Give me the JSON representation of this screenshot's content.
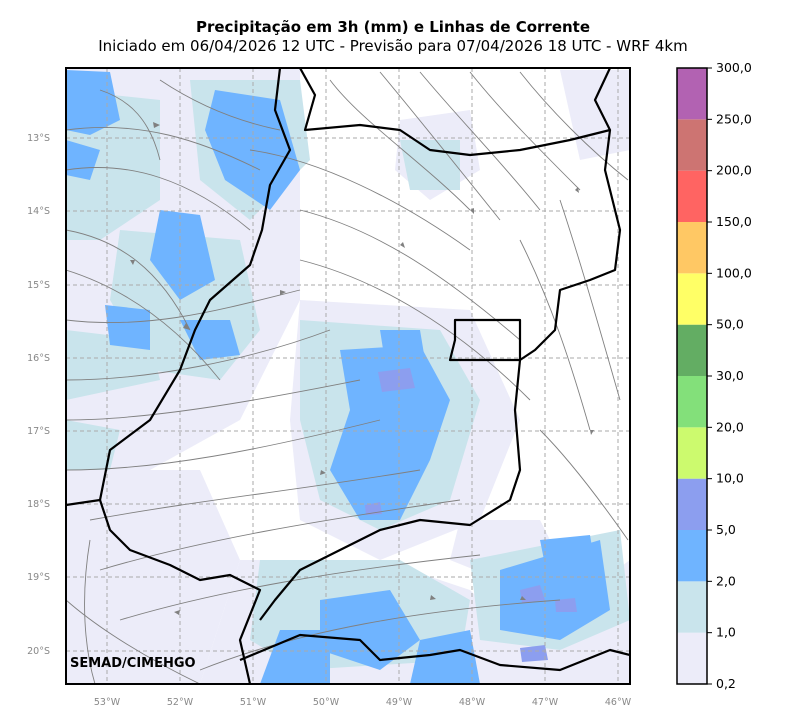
{
  "title": "Precipitação em 3h (mm) e Linhas de Corrente",
  "subtitle": "Iniciado em 06/04/2026 12 UTC - Previsão para 07/04/2026 18 UTC - WRF 4km",
  "credit": "SEMAD/CIMEHGO",
  "map": {
    "lat_labels": [
      "13°S",
      "14°S",
      "15°S",
      "16°S",
      "17°S",
      "18°S",
      "19°S",
      "20°S"
    ],
    "lon_labels": [
      "53°W",
      "52°W",
      "51°W",
      "50°W",
      "49°W",
      "48°W",
      "47°W",
      "46°W"
    ],
    "gridlines": true,
    "grid_style": "dashed"
  },
  "colorbar": {
    "levels": [
      "0,2",
      "1,0",
      "2,0",
      "5,0",
      "10,0",
      "20,0",
      "30,0",
      "50,0",
      "100,0",
      "150,0",
      "200,0",
      "250,0",
      "300,0"
    ],
    "colors": [
      "#ececf9",
      "#c9e4ec",
      "#6fb4ff",
      "#8c9eef",
      "#ccfa6e",
      "#83e07a",
      "#63ad63",
      "#ffff66",
      "#ffc864",
      "#ff6462",
      "#cd7472",
      "#b262b2"
    ]
  },
  "colors": {
    "rain_light": "#ececf9",
    "rain_pale": "#c9e4ec",
    "rain_blue": "#6fb4ff",
    "rain_violet": "#8c9eef",
    "streamline": "#808080",
    "border": "#000000"
  }
}
